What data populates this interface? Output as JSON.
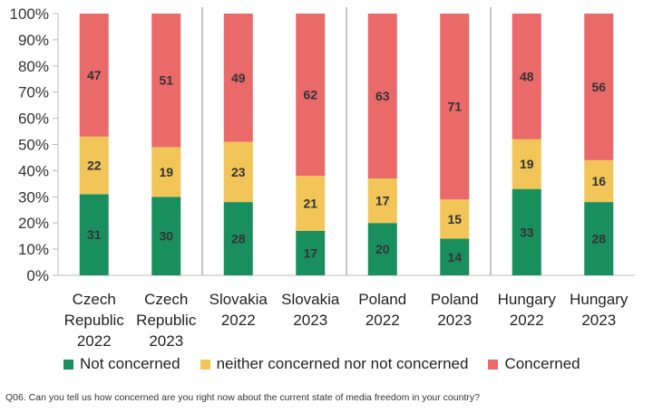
{
  "chart_data": {
    "type": "bar",
    "stacked": true,
    "categories": [
      [
        "Czech",
        "Republic",
        "2022"
      ],
      [
        "Czech",
        "Republic",
        "2023"
      ],
      [
        "Slovakia",
        "2022"
      ],
      [
        "Slovakia",
        "2023"
      ],
      [
        "Poland",
        "2022"
      ],
      [
        "Poland",
        "2023"
      ],
      [
        "Hungary",
        "2022"
      ],
      [
        "Hungary",
        "2023"
      ]
    ],
    "series": [
      {
        "name": "Not concerned",
        "color": "#1a8f5e",
        "values": [
          31,
          30,
          28,
          17,
          20,
          14,
          33,
          28
        ]
      },
      {
        "name": "neither concerned nor not concerned",
        "color": "#f1c557",
        "values": [
          22,
          19,
          23,
          21,
          17,
          15,
          19,
          16
        ]
      },
      {
        "name": "Concerned",
        "color": "#ea6969",
        "values": [
          47,
          51,
          49,
          62,
          63,
          71,
          48,
          56
        ]
      }
    ],
    "ylim": [
      0,
      100
    ],
    "yticks": [
      "0%",
      "10%",
      "20%",
      "30%",
      "40%",
      "50%",
      "60%",
      "70%",
      "80%",
      "90%",
      "100%"
    ],
    "legend_position": "bottom",
    "group_separators": true
  },
  "footnote": "Q06. Can you tell us how concerned are you right now about the current state of media freedom in your country?"
}
